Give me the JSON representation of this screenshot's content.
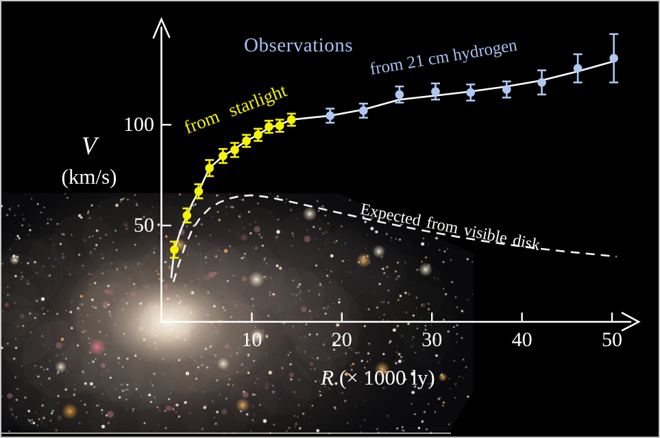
{
  "chart_data": {
    "type": "scatter",
    "title": "Observations",
    "x_axis": {
      "symbol": "R",
      "unit": "(× 1000 ly)",
      "ticks": [
        10,
        20,
        30,
        40,
        50
      ],
      "range": [
        0,
        53
      ]
    },
    "y_axis": {
      "symbol": "V",
      "unit": "(km/s)",
      "ticks": [
        50,
        100
      ],
      "range": [
        0,
        155
      ]
    },
    "annotations": {
      "title": {
        "text": "Observations",
        "color": "#a7c0f0"
      },
      "hydrogen": {
        "text": "from 21 cm hydrogen",
        "color": "#a7c0f0",
        "angle_deg": -9.5
      },
      "starlight": {
        "text": "from starlight",
        "color": "#f4f400",
        "angle_deg": -21
      },
      "expected": {
        "text": "Expected from visible disk",
        "color": "#fafaf8",
        "angle_deg": 11.5
      }
    },
    "series": [
      {
        "name": "from starlight",
        "type": "scatter",
        "marker_color": "#f4f400",
        "points": [
          {
            "R": 1.4,
            "V": 38,
            "err": 4
          },
          {
            "R": 2.8,
            "V": 55,
            "err": 3.5
          },
          {
            "R": 4.1,
            "V": 67,
            "err": 3.5
          },
          {
            "R": 5.3,
            "V": 78.5,
            "err": 4
          },
          {
            "R": 6.8,
            "V": 84.5,
            "err": 3.5
          },
          {
            "R": 8.1,
            "V": 87.5,
            "err": 3.5
          },
          {
            "R": 9.4,
            "V": 92,
            "err": 3
          },
          {
            "R": 10.7,
            "V": 95,
            "err": 3
          },
          {
            "R": 11.9,
            "V": 99,
            "err": 3
          },
          {
            "R": 13.1,
            "V": 99.5,
            "err": 3
          },
          {
            "R": 14.4,
            "V": 102.5,
            "err": 3
          }
        ]
      },
      {
        "name": "from 21 cm hydrogen",
        "type": "scatter",
        "marker_color": "#aec6f2",
        "points": [
          {
            "R": 18.7,
            "V": 104.5,
            "err": 3.5
          },
          {
            "R": 22.4,
            "V": 107,
            "err": 3.5
          },
          {
            "R": 26.4,
            "V": 115,
            "err": 4
          },
          {
            "R": 30.4,
            "V": 116.5,
            "err": 4
          },
          {
            "R": 34.3,
            "V": 116,
            "err": 4
          },
          {
            "R": 38.3,
            "V": 117.5,
            "err": 4
          },
          {
            "R": 42.2,
            "V": 121,
            "err": 6
          },
          {
            "R": 46.2,
            "V": 128,
            "err": 7
          },
          {
            "R": 50.2,
            "V": 133,
            "err": 12
          }
        ]
      },
      {
        "name": "observed rotation curve",
        "type": "line",
        "style": "solid",
        "color": "#ffffff",
        "points": [
          [
            1.05,
            24
          ],
          [
            1.4,
            38
          ],
          [
            2.1,
            47.5
          ],
          [
            2.8,
            55
          ],
          [
            3.45,
            61.5
          ],
          [
            4.1,
            67
          ],
          [
            5.3,
            78.5
          ],
          [
            6.8,
            84.5
          ],
          [
            8.1,
            88
          ],
          [
            9.4,
            92
          ],
          [
            10.7,
            95
          ],
          [
            11.9,
            98.5
          ],
          [
            13.1,
            100
          ],
          [
            14.4,
            102.5
          ],
          [
            16.5,
            103.5
          ],
          [
            18.7,
            104.5
          ],
          [
            22.4,
            107.5
          ],
          [
            26.4,
            112.5
          ],
          [
            30.4,
            114.5
          ],
          [
            34.3,
            116.5
          ],
          [
            38.3,
            119
          ],
          [
            42.2,
            122
          ],
          [
            46.2,
            126.5
          ],
          [
            50.2,
            131.5
          ]
        ]
      },
      {
        "name": "Expected from visible disk",
        "type": "line",
        "style": "dashed",
        "color": "#f5f5f5",
        "points": [
          [
            1.3,
            22
          ],
          [
            1.9,
            31
          ],
          [
            2.6,
            40
          ],
          [
            3.4,
            48
          ],
          [
            4.3,
            54
          ],
          [
            5.3,
            58.5
          ],
          [
            6.4,
            61.5
          ],
          [
            7.6,
            63.5
          ],
          [
            8.8,
            64.7
          ],
          [
            10,
            65
          ],
          [
            11.3,
            64.4
          ],
          [
            12.8,
            63.2
          ],
          [
            14.5,
            61.6
          ],
          [
            16.5,
            59.6
          ],
          [
            18.7,
            57.3
          ],
          [
            21,
            55
          ],
          [
            24,
            52
          ],
          [
            27,
            49.3
          ],
          [
            30,
            46.7
          ],
          [
            33,
            44.3
          ],
          [
            36,
            42.1
          ],
          [
            39,
            40.2
          ],
          [
            42,
            38.5
          ],
          [
            45,
            37
          ],
          [
            48,
            35.7
          ],
          [
            50.5,
            34.6
          ]
        ]
      }
    ],
    "background_photo": {
      "subject": "spiral galaxy photograph",
      "position": "lower left"
    }
  }
}
